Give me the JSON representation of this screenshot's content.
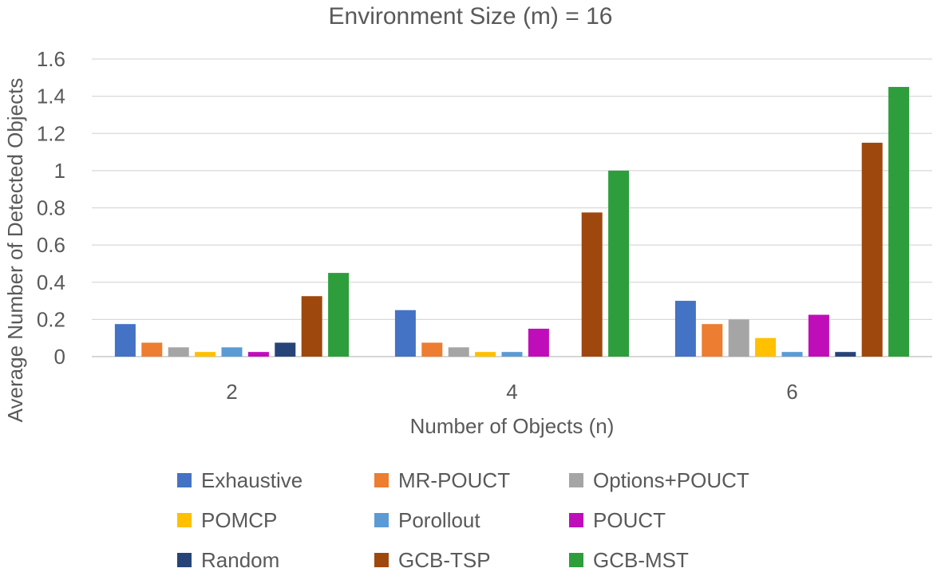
{
  "chart_data": {
    "type": "bar",
    "title": "Environment Size (m) = 16",
    "xlabel": "Number of Objects (n)",
    "ylabel": "Average Number of Detected Objects",
    "categories": [
      "2",
      "4",
      "6"
    ],
    "ylim": [
      0,
      1.6
    ],
    "yticks": [
      "0",
      "0.2",
      "0.4",
      "0.6",
      "0.8",
      "1",
      "1.2",
      "1.4",
      "1.6"
    ],
    "grid": true,
    "legend_position": "bottom",
    "series": [
      {
        "name": "Exhaustive",
        "color": "#4472C4",
        "values": [
          0.175,
          0.25,
          0.3
        ]
      },
      {
        "name": "MR-POUCT",
        "color": "#ED7D31",
        "values": [
          0.075,
          0.075,
          0.175
        ]
      },
      {
        "name": "Options+POUCT",
        "color": "#A5A5A5",
        "values": [
          0.05,
          0.05,
          0.2
        ]
      },
      {
        "name": "POMCP",
        "color": "#FFC000",
        "values": [
          0.025,
          0.025,
          0.1
        ]
      },
      {
        "name": "Porollout",
        "color": "#5B9BD5",
        "values": [
          0.05,
          0.025,
          0.025
        ]
      },
      {
        "name": "POUCT",
        "color": "#C00DBA",
        "values": [
          0.025,
          0.15,
          0.225
        ]
      },
      {
        "name": "Random",
        "color": "#264478",
        "values": [
          0.075,
          0,
          0.025
        ]
      },
      {
        "name": "GCB-TSP",
        "color": "#9E480E",
        "values": [
          0.325,
          0.775,
          1.15
        ]
      },
      {
        "name": "GCB-MST",
        "color": "#2E9E3C",
        "values": [
          0.45,
          1.0,
          1.45
        ]
      }
    ]
  }
}
